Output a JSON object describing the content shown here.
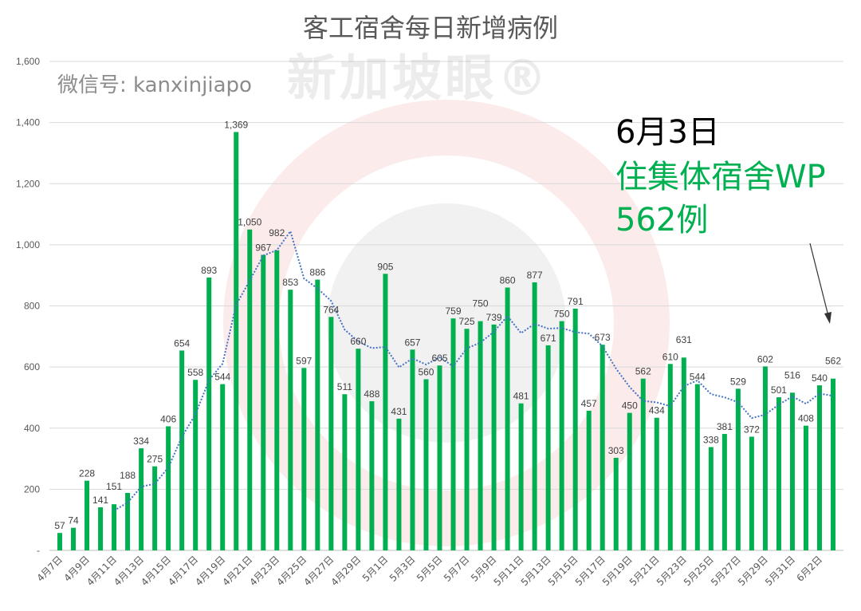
{
  "chart_data": {
    "type": "bar",
    "title": "客工宿舍每日新增病例",
    "categories": [
      "4月7日",
      "4月8日",
      "4月9日",
      "4月10日",
      "4月11日",
      "4月12日",
      "4月13日",
      "4月14日",
      "4月15日",
      "4月16日",
      "4月17日",
      "4月18日",
      "4月19日",
      "4月20日",
      "4月21日",
      "4月22日",
      "4月23日",
      "4月24日",
      "4月25日",
      "4月26日",
      "4月27日",
      "4月28日",
      "4月29日",
      "4月30日",
      "5月1日",
      "5月2日",
      "5月3日",
      "5月4日",
      "5月5日",
      "5月6日",
      "5月7日",
      "5月8日",
      "5月9日",
      "5月10日",
      "5月11日",
      "5月12日",
      "5月13日",
      "5月14日",
      "5月15日",
      "5月16日",
      "5月17日",
      "5月18日",
      "5月19日",
      "5月20日",
      "5月21日",
      "5月22日",
      "5月23日",
      "5月24日",
      "5月25日",
      "5月26日",
      "5月27日",
      "5月28日",
      "5月29日",
      "5月30日",
      "5月31日",
      "6月1日",
      "6月2日",
      "6月3日"
    ],
    "tick_labels": [
      "4月7日",
      "4月9日",
      "4月11日",
      "4月13日",
      "4月15日",
      "4月17日",
      "4月19日",
      "4月21日",
      "4月23日",
      "4月25日",
      "4月27日",
      "4月29日",
      "5月1日",
      "5月3日",
      "5月5日",
      "5月7日",
      "5月9日",
      "5月11日",
      "5月13日",
      "5月15日",
      "5月17日",
      "5月19日",
      "5月21日",
      "5月23日",
      "5月25日",
      "5月27日",
      "5月29日",
      "5月31日",
      "6月2日"
    ],
    "values": [
      57,
      74,
      228,
      141,
      151,
      188,
      334,
      275,
      406,
      654,
      558,
      893,
      544,
      1369,
      1050,
      967,
      982,
      853,
      597,
      886,
      764,
      511,
      660,
      488,
      905,
      431,
      657,
      560,
      605,
      759,
      725,
      750,
      739,
      860,
      481,
      877,
      671,
      750,
      791,
      457,
      673,
      303,
      450,
      562,
      434,
      610,
      631,
      544,
      338,
      381,
      529,
      372,
      602,
      501,
      516,
      408,
      540,
      562
    ],
    "trendline": {
      "type": "moving average",
      "period": 5,
      "color": "#4472C4",
      "style": "dotted"
    },
    "ylim": [
      0,
      1600
    ],
    "yticks": [
      "-",
      "200",
      "400",
      "600",
      "800",
      "1,000",
      "1,200",
      "1,400",
      "1,600"
    ],
    "grid": true,
    "bar_color": "#00B050",
    "xlabel": "",
    "ylabel": ""
  },
  "annotation": {
    "date": "6月3日",
    "line1": "住集体宿舍WP",
    "line2": "562例",
    "date_color": "#000000",
    "text_color": "#00B050"
  },
  "watermark": {
    "text": "新加坡眼®",
    "wechat": "微信号: kanxinjiapo"
  }
}
